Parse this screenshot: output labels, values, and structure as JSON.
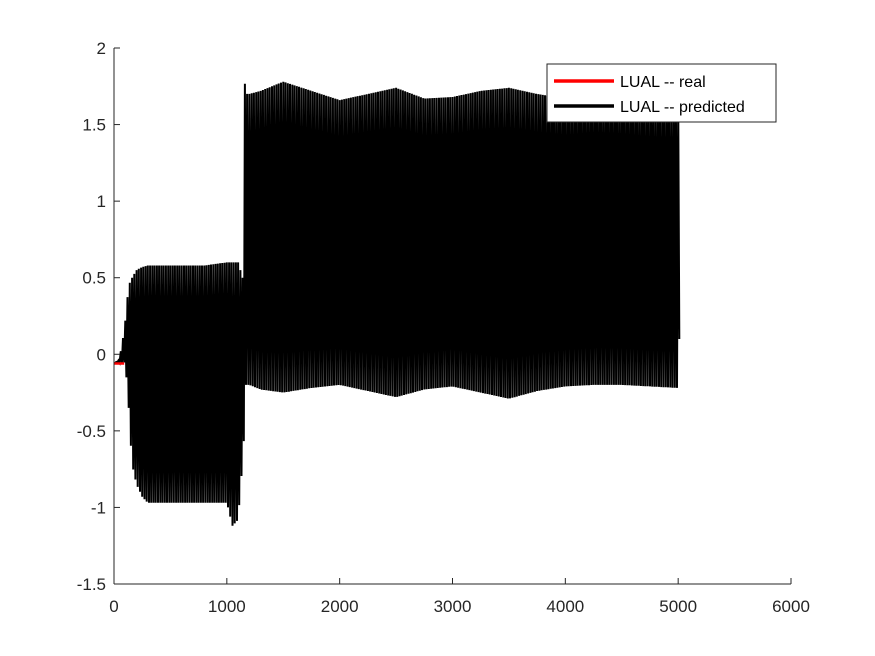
{
  "chart_data": {
    "type": "line",
    "title": "",
    "xlabel": "",
    "ylabel": "",
    "xlim": [
      0,
      6000
    ],
    "ylim": [
      -1.5,
      2
    ],
    "x_ticks": [
      0,
      1000,
      2000,
      3000,
      4000,
      5000,
      6000
    ],
    "y_ticks": [
      -1.5,
      -1,
      -0.5,
      0,
      0.5,
      1,
      1.5,
      2
    ],
    "x_tick_labels": [
      "0",
      "1000",
      "2000",
      "3000",
      "4000",
      "5000",
      "6000"
    ],
    "y_tick_labels": [
      "-1.5",
      "-1",
      "-0.5",
      "0",
      "0.5",
      "1",
      "1.5",
      "2"
    ],
    "grid": false,
    "legend_position": "top-right",
    "series": [
      {
        "name": "LUAL -- real",
        "color": "#ff0000",
        "x": [
          0,
          30,
          60,
          90
        ],
        "y": [
          -0.06,
          -0.06,
          -0.06,
          -0.06
        ]
      },
      {
        "name": "LUAL -- predicted",
        "color": "#000000",
        "oscillation_period": 20,
        "envelope": {
          "x": [
            0,
            40,
            70,
            100,
            130,
            160,
            200,
            250,
            300,
            400,
            600,
            800,
            1000,
            1050,
            1100,
            1140,
            1155,
            1170,
            1200,
            1300,
            1500,
            1750,
            2000,
            2250,
            2500,
            2750,
            3000,
            3250,
            3500,
            3750,
            4000,
            4250,
            4500,
            4750,
            5000,
            5010
          ],
          "upper": [
            -0.06,
            -0.04,
            0.05,
            0.22,
            0.45,
            0.5,
            0.55,
            0.57,
            0.58,
            0.58,
            0.58,
            0.58,
            0.6,
            0.6,
            0.6,
            0.5,
            1.8,
            1.7,
            1.7,
            1.72,
            1.78,
            1.72,
            1.66,
            1.7,
            1.74,
            1.67,
            1.68,
            1.72,
            1.74,
            1.7,
            1.67,
            1.69,
            1.68,
            1.66,
            1.66,
            1.1
          ],
          "lower": [
            -0.06,
            -0.05,
            -0.06,
            -0.05,
            -0.35,
            -0.72,
            -0.85,
            -0.93,
            -0.97,
            -0.97,
            -0.97,
            -0.97,
            -0.97,
            -1.12,
            -1.08,
            -0.7,
            -0.5,
            -0.2,
            -0.2,
            -0.23,
            -0.25,
            -0.22,
            -0.2,
            -0.24,
            -0.28,
            -0.23,
            -0.21,
            -0.25,
            -0.29,
            -0.24,
            -0.21,
            -0.2,
            -0.2,
            -0.21,
            -0.22,
            0.1
          ]
        }
      }
    ]
  }
}
